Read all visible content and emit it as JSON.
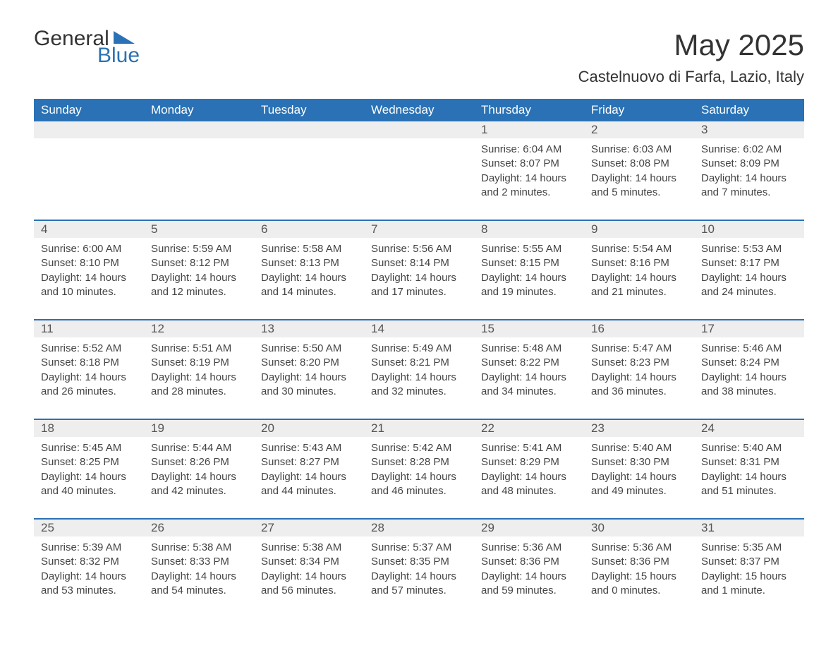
{
  "brand": {
    "word1": "General",
    "word2": "Blue",
    "brand_color": "#2a72b5"
  },
  "title": "May 2025",
  "location": "Castelnuovo di Farfa, Lazio, Italy",
  "colors": {
    "header_bg": "#2a72b5",
    "header_text": "#ffffff",
    "daynum_bg": "#eeeeee",
    "body_text": "#444444",
    "page_bg": "#ffffff"
  },
  "day_headers": [
    "Sunday",
    "Monday",
    "Tuesday",
    "Wednesday",
    "Thursday",
    "Friday",
    "Saturday"
  ],
  "weeks": [
    [
      null,
      null,
      null,
      null,
      {
        "n": "1",
        "sunrise": "Sunrise: 6:04 AM",
        "sunset": "Sunset: 8:07 PM",
        "day1": "Daylight: 14 hours",
        "day2": "and 2 minutes."
      },
      {
        "n": "2",
        "sunrise": "Sunrise: 6:03 AM",
        "sunset": "Sunset: 8:08 PM",
        "day1": "Daylight: 14 hours",
        "day2": "and 5 minutes."
      },
      {
        "n": "3",
        "sunrise": "Sunrise: 6:02 AM",
        "sunset": "Sunset: 8:09 PM",
        "day1": "Daylight: 14 hours",
        "day2": "and 7 minutes."
      }
    ],
    [
      {
        "n": "4",
        "sunrise": "Sunrise: 6:00 AM",
        "sunset": "Sunset: 8:10 PM",
        "day1": "Daylight: 14 hours",
        "day2": "and 10 minutes."
      },
      {
        "n": "5",
        "sunrise": "Sunrise: 5:59 AM",
        "sunset": "Sunset: 8:12 PM",
        "day1": "Daylight: 14 hours",
        "day2": "and 12 minutes."
      },
      {
        "n": "6",
        "sunrise": "Sunrise: 5:58 AM",
        "sunset": "Sunset: 8:13 PM",
        "day1": "Daylight: 14 hours",
        "day2": "and 14 minutes."
      },
      {
        "n": "7",
        "sunrise": "Sunrise: 5:56 AM",
        "sunset": "Sunset: 8:14 PM",
        "day1": "Daylight: 14 hours",
        "day2": "and 17 minutes."
      },
      {
        "n": "8",
        "sunrise": "Sunrise: 5:55 AM",
        "sunset": "Sunset: 8:15 PM",
        "day1": "Daylight: 14 hours",
        "day2": "and 19 minutes."
      },
      {
        "n": "9",
        "sunrise": "Sunrise: 5:54 AM",
        "sunset": "Sunset: 8:16 PM",
        "day1": "Daylight: 14 hours",
        "day2": "and 21 minutes."
      },
      {
        "n": "10",
        "sunrise": "Sunrise: 5:53 AM",
        "sunset": "Sunset: 8:17 PM",
        "day1": "Daylight: 14 hours",
        "day2": "and 24 minutes."
      }
    ],
    [
      {
        "n": "11",
        "sunrise": "Sunrise: 5:52 AM",
        "sunset": "Sunset: 8:18 PM",
        "day1": "Daylight: 14 hours",
        "day2": "and 26 minutes."
      },
      {
        "n": "12",
        "sunrise": "Sunrise: 5:51 AM",
        "sunset": "Sunset: 8:19 PM",
        "day1": "Daylight: 14 hours",
        "day2": "and 28 minutes."
      },
      {
        "n": "13",
        "sunrise": "Sunrise: 5:50 AM",
        "sunset": "Sunset: 8:20 PM",
        "day1": "Daylight: 14 hours",
        "day2": "and 30 minutes."
      },
      {
        "n": "14",
        "sunrise": "Sunrise: 5:49 AM",
        "sunset": "Sunset: 8:21 PM",
        "day1": "Daylight: 14 hours",
        "day2": "and 32 minutes."
      },
      {
        "n": "15",
        "sunrise": "Sunrise: 5:48 AM",
        "sunset": "Sunset: 8:22 PM",
        "day1": "Daylight: 14 hours",
        "day2": "and 34 minutes."
      },
      {
        "n": "16",
        "sunrise": "Sunrise: 5:47 AM",
        "sunset": "Sunset: 8:23 PM",
        "day1": "Daylight: 14 hours",
        "day2": "and 36 minutes."
      },
      {
        "n": "17",
        "sunrise": "Sunrise: 5:46 AM",
        "sunset": "Sunset: 8:24 PM",
        "day1": "Daylight: 14 hours",
        "day2": "and 38 minutes."
      }
    ],
    [
      {
        "n": "18",
        "sunrise": "Sunrise: 5:45 AM",
        "sunset": "Sunset: 8:25 PM",
        "day1": "Daylight: 14 hours",
        "day2": "and 40 minutes."
      },
      {
        "n": "19",
        "sunrise": "Sunrise: 5:44 AM",
        "sunset": "Sunset: 8:26 PM",
        "day1": "Daylight: 14 hours",
        "day2": "and 42 minutes."
      },
      {
        "n": "20",
        "sunrise": "Sunrise: 5:43 AM",
        "sunset": "Sunset: 8:27 PM",
        "day1": "Daylight: 14 hours",
        "day2": "and 44 minutes."
      },
      {
        "n": "21",
        "sunrise": "Sunrise: 5:42 AM",
        "sunset": "Sunset: 8:28 PM",
        "day1": "Daylight: 14 hours",
        "day2": "and 46 minutes."
      },
      {
        "n": "22",
        "sunrise": "Sunrise: 5:41 AM",
        "sunset": "Sunset: 8:29 PM",
        "day1": "Daylight: 14 hours",
        "day2": "and 48 minutes."
      },
      {
        "n": "23",
        "sunrise": "Sunrise: 5:40 AM",
        "sunset": "Sunset: 8:30 PM",
        "day1": "Daylight: 14 hours",
        "day2": "and 49 minutes."
      },
      {
        "n": "24",
        "sunrise": "Sunrise: 5:40 AM",
        "sunset": "Sunset: 8:31 PM",
        "day1": "Daylight: 14 hours",
        "day2": "and 51 minutes."
      }
    ],
    [
      {
        "n": "25",
        "sunrise": "Sunrise: 5:39 AM",
        "sunset": "Sunset: 8:32 PM",
        "day1": "Daylight: 14 hours",
        "day2": "and 53 minutes."
      },
      {
        "n": "26",
        "sunrise": "Sunrise: 5:38 AM",
        "sunset": "Sunset: 8:33 PM",
        "day1": "Daylight: 14 hours",
        "day2": "and 54 minutes."
      },
      {
        "n": "27",
        "sunrise": "Sunrise: 5:38 AM",
        "sunset": "Sunset: 8:34 PM",
        "day1": "Daylight: 14 hours",
        "day2": "and 56 minutes."
      },
      {
        "n": "28",
        "sunrise": "Sunrise: 5:37 AM",
        "sunset": "Sunset: 8:35 PM",
        "day1": "Daylight: 14 hours",
        "day2": "and 57 minutes."
      },
      {
        "n": "29",
        "sunrise": "Sunrise: 5:36 AM",
        "sunset": "Sunset: 8:36 PM",
        "day1": "Daylight: 14 hours",
        "day2": "and 59 minutes."
      },
      {
        "n": "30",
        "sunrise": "Sunrise: 5:36 AM",
        "sunset": "Sunset: 8:36 PM",
        "day1": "Daylight: 15 hours",
        "day2": "and 0 minutes."
      },
      {
        "n": "31",
        "sunrise": "Sunrise: 5:35 AM",
        "sunset": "Sunset: 8:37 PM",
        "day1": "Daylight: 15 hours",
        "day2": "and 1 minute."
      }
    ]
  ]
}
